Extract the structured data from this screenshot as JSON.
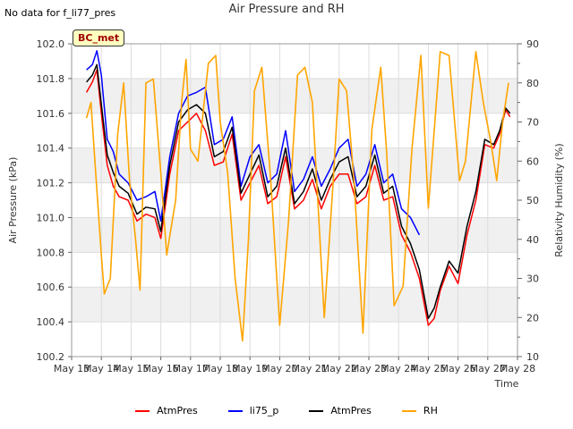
{
  "no_data_text": "No data for f_li77_pres",
  "site_badge": "BC_met",
  "chart_data": {
    "type": "line",
    "title": "Air Pressure and RH",
    "xlabel": "Time",
    "ylabel": "Air Pressure (kPa)",
    "y2label": "Relativity Humidity (%)",
    "x_ticks": [
      "May 13",
      "May 14",
      "May 15",
      "May 16",
      "May 17",
      "May 18",
      "May 19",
      "May 20",
      "May 21",
      "May 22",
      "May 23",
      "May 24",
      "May 25",
      "May 26",
      "May 27",
      "May 28"
    ],
    "ylim": [
      100.2,
      102.0
    ],
    "y_ticks": [
      "100.2",
      "100.4",
      "100.6",
      "100.8",
      "101.0",
      "101.2",
      "101.4",
      "101.6",
      "101.8",
      "102.0"
    ],
    "y2lim": [
      10,
      90
    ],
    "y2_ticks": [
      "10",
      "20",
      "30",
      "40",
      "50",
      "60",
      "70",
      "80",
      "90"
    ],
    "x_unit": "day offset from May 13",
    "grid": true,
    "colors": {
      "AtmPres_red": "#ff0000",
      "li75_p": "#0000ff",
      "AtmPres_black": "#000000",
      "RH": "#ffa500"
    },
    "series": [
      {
        "name": "AtmPres",
        "axis": "left",
        "color": "#ff0000",
        "x": [
          0.5,
          0.7,
          0.85,
          1.0,
          1.2,
          1.4,
          1.6,
          1.9,
          2.2,
          2.5,
          2.8,
          3.0,
          3.3,
          3.6,
          3.9,
          4.2,
          4.5,
          4.8,
          5.1,
          5.4,
          5.7,
          6.0,
          6.3,
          6.6,
          6.9,
          7.2,
          7.5,
          7.8,
          8.1,
          8.4,
          8.7,
          9.0,
          9.3,
          9.6,
          9.9,
          10.2,
          10.5,
          10.8,
          11.1,
          11.4,
          11.7,
          12.0,
          12.2,
          12.4,
          12.7,
          13.0,
          13.3,
          13.6,
          13.9,
          14.2,
          14.4,
          14.6,
          14.75
        ],
        "y": [
          101.72,
          101.78,
          101.85,
          101.6,
          101.3,
          101.18,
          101.12,
          101.1,
          100.98,
          101.02,
          101.0,
          100.88,
          101.25,
          101.5,
          101.55,
          101.6,
          101.5,
          101.3,
          101.32,
          101.48,
          101.1,
          101.2,
          101.3,
          101.08,
          101.12,
          101.35,
          101.05,
          101.1,
          101.22,
          101.05,
          101.18,
          101.25,
          101.25,
          101.08,
          101.12,
          101.3,
          101.1,
          101.12,
          100.9,
          100.8,
          100.65,
          100.38,
          100.42,
          100.58,
          100.72,
          100.62,
          100.9,
          101.1,
          101.42,
          101.4,
          101.48,
          101.62,
          101.58
        ]
      },
      {
        "name": "li75_p",
        "axis": "left",
        "color": "#0000ff",
        "x": [
          0.5,
          0.7,
          0.85,
          1.0,
          1.2,
          1.4,
          1.6,
          1.9,
          2.2,
          2.5,
          2.8,
          3.0,
          3.3,
          3.6,
          3.9,
          4.2,
          4.5,
          4.8,
          5.1,
          5.4,
          5.7,
          6.0,
          6.3,
          6.6,
          6.9,
          7.2,
          7.5,
          7.8,
          8.1,
          8.4,
          8.7,
          9.0,
          9.3,
          9.6,
          9.9,
          10.2,
          10.5,
          10.8,
          11.1,
          11.4,
          11.7
        ],
        "y": [
          101.85,
          101.88,
          101.96,
          101.82,
          101.45,
          101.38,
          101.25,
          101.2,
          101.1,
          101.12,
          101.15,
          100.98,
          101.35,
          101.6,
          101.7,
          101.72,
          101.75,
          101.42,
          101.45,
          101.58,
          101.18,
          101.35,
          101.42,
          101.2,
          101.25,
          101.5,
          101.15,
          101.22,
          101.35,
          101.18,
          101.28,
          101.4,
          101.45,
          101.18,
          101.25,
          101.42,
          101.2,
          101.25,
          101.05,
          101.0,
          100.9
        ]
      },
      {
        "name": "AtmPres",
        "axis": "left",
        "color": "#000000",
        "x": [
          0.5,
          0.7,
          0.85,
          1.0,
          1.2,
          1.4,
          1.6,
          1.9,
          2.2,
          2.5,
          2.8,
          3.0,
          3.3,
          3.6,
          3.9,
          4.2,
          4.5,
          4.8,
          5.1,
          5.4,
          5.7,
          6.0,
          6.3,
          6.6,
          6.9,
          7.2,
          7.5,
          7.8,
          8.1,
          8.4,
          8.7,
          9.0,
          9.3,
          9.6,
          9.9,
          10.2,
          10.5,
          10.8,
          11.1,
          11.4,
          11.7,
          12.0,
          12.2,
          12.4,
          12.7,
          13.0,
          13.3,
          13.6,
          13.9,
          14.2,
          14.4,
          14.6,
          14.75
        ],
        "y": [
          101.78,
          101.82,
          101.88,
          101.65,
          101.36,
          101.26,
          101.18,
          101.14,
          101.02,
          101.06,
          101.05,
          100.92,
          101.3,
          101.55,
          101.62,
          101.65,
          101.6,
          101.35,
          101.38,
          101.52,
          101.14,
          101.25,
          101.36,
          101.12,
          101.18,
          101.4,
          101.08,
          101.15,
          101.28,
          101.1,
          101.22,
          101.32,
          101.35,
          101.12,
          101.18,
          101.36,
          101.14,
          101.18,
          100.95,
          100.85,
          100.7,
          100.42,
          100.48,
          100.6,
          100.75,
          100.68,
          100.95,
          101.15,
          101.45,
          101.42,
          101.5,
          101.63,
          101.6
        ]
      },
      {
        "name": "RH",
        "axis": "right",
        "color": "#ffa500",
        "x": [
          0.5,
          0.65,
          0.8,
          1.0,
          1.1,
          1.3,
          1.55,
          1.75,
          1.95,
          2.15,
          2.3,
          2.5,
          2.75,
          3.0,
          3.2,
          3.5,
          3.7,
          3.85,
          4.0,
          4.25,
          4.6,
          4.85,
          5.0,
          5.25,
          5.5,
          5.75,
          5.95,
          6.15,
          6.4,
          6.7,
          7.0,
          7.3,
          7.6,
          7.85,
          8.1,
          8.5,
          8.8,
          9.0,
          9.25,
          9.5,
          9.8,
          10.1,
          10.4,
          10.6,
          10.85,
          11.15,
          11.45,
          11.75,
          12.0,
          12.4,
          12.7,
          13.05,
          13.25,
          13.6,
          13.85,
          14.1,
          14.3,
          14.5,
          14.7
        ],
        "y": [
          71,
          75,
          58,
          36,
          26,
          30,
          67,
          80,
          55,
          40,
          27,
          80,
          81,
          57,
          36,
          50,
          75,
          86,
          63,
          60,
          85,
          87,
          70,
          57,
          30,
          14,
          40,
          78,
          84,
          55,
          18,
          45,
          82,
          84,
          75,
          20,
          55,
          81,
          78,
          55,
          16,
          68,
          84,
          62,
          23,
          28,
          63,
          87,
          48,
          88,
          87,
          55,
          60,
          88,
          75,
          65,
          55,
          70,
          80
        ]
      }
    ]
  },
  "legend": [
    {
      "label": "AtmPres",
      "color": "#ff0000"
    },
    {
      "label": "li75_p",
      "color": "#0000ff"
    },
    {
      "label": "AtmPres",
      "color": "#000000"
    },
    {
      "label": "RH",
      "color": "#ffa500"
    }
  ]
}
